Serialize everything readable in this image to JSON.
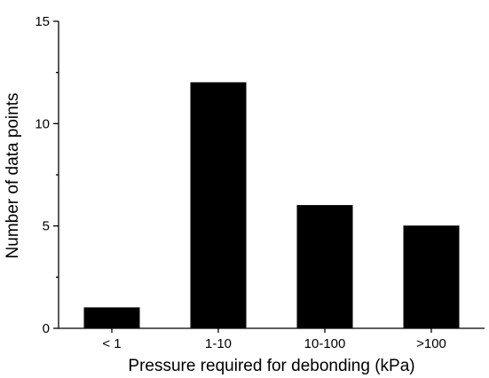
{
  "chart_data": {
    "type": "bar",
    "categories": [
      "< 1",
      "1-10",
      "10-100",
      ">100"
    ],
    "values": [
      1,
      12,
      6,
      5
    ],
    "title": "",
    "xlabel": "Pressure required for debonding (kPa)",
    "ylabel": "Number of data points",
    "ylim": [
      0,
      15
    ],
    "yticks": [
      0,
      5,
      10,
      15
    ],
    "grid": false,
    "bar_color": "#000000"
  }
}
